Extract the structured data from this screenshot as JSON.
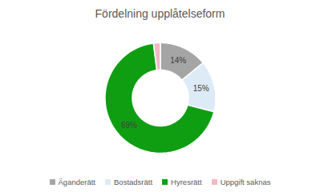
{
  "chart_data": {
    "type": "pie",
    "title": "Fördelning upplåtelseform",
    "categories": [
      "Äganderätt",
      "Bostadsrätt",
      "Hyresrätt",
      "Uppgift saknas"
    ],
    "values": [
      14,
      15,
      69,
      2
    ],
    "value_labels": [
      "14%",
      "15%",
      "69%",
      null
    ],
    "colors": [
      "#a5a5a5",
      "#ddebf7",
      "#0f9e12",
      "#f2b8c6"
    ],
    "data_labels": true,
    "legend": "bottom"
  }
}
